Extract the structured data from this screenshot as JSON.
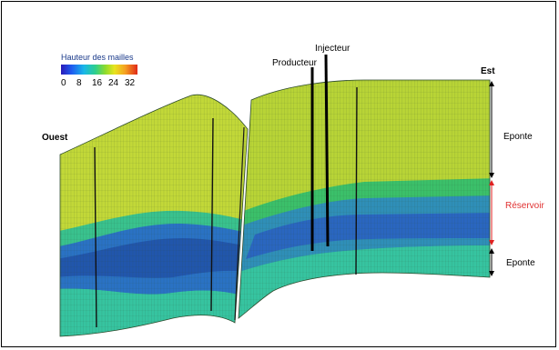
{
  "legend": {
    "title": "Hauteur des mailles",
    "ticks": [
      "0",
      "8",
      "16",
      "24",
      "32"
    ]
  },
  "labels": {
    "west": "Ouest",
    "east": "Est",
    "producer": "Producteur",
    "injector": "Injecteur",
    "upper_seal": "Eponte",
    "reservoir": "Réservoir",
    "lower_seal": "Eponte"
  },
  "colors": {
    "top_layer": "#c2d838",
    "top_layer_dark": "#b2cc32",
    "mid_layer": "#2fbf8a",
    "reservoir": "#2a72c4",
    "reservoir_dark": "#1f4fa6",
    "bottom_layer": "#36c4a0",
    "grid": "#2c4a2c",
    "well": "#000000",
    "marker_red": "#e02020"
  }
}
